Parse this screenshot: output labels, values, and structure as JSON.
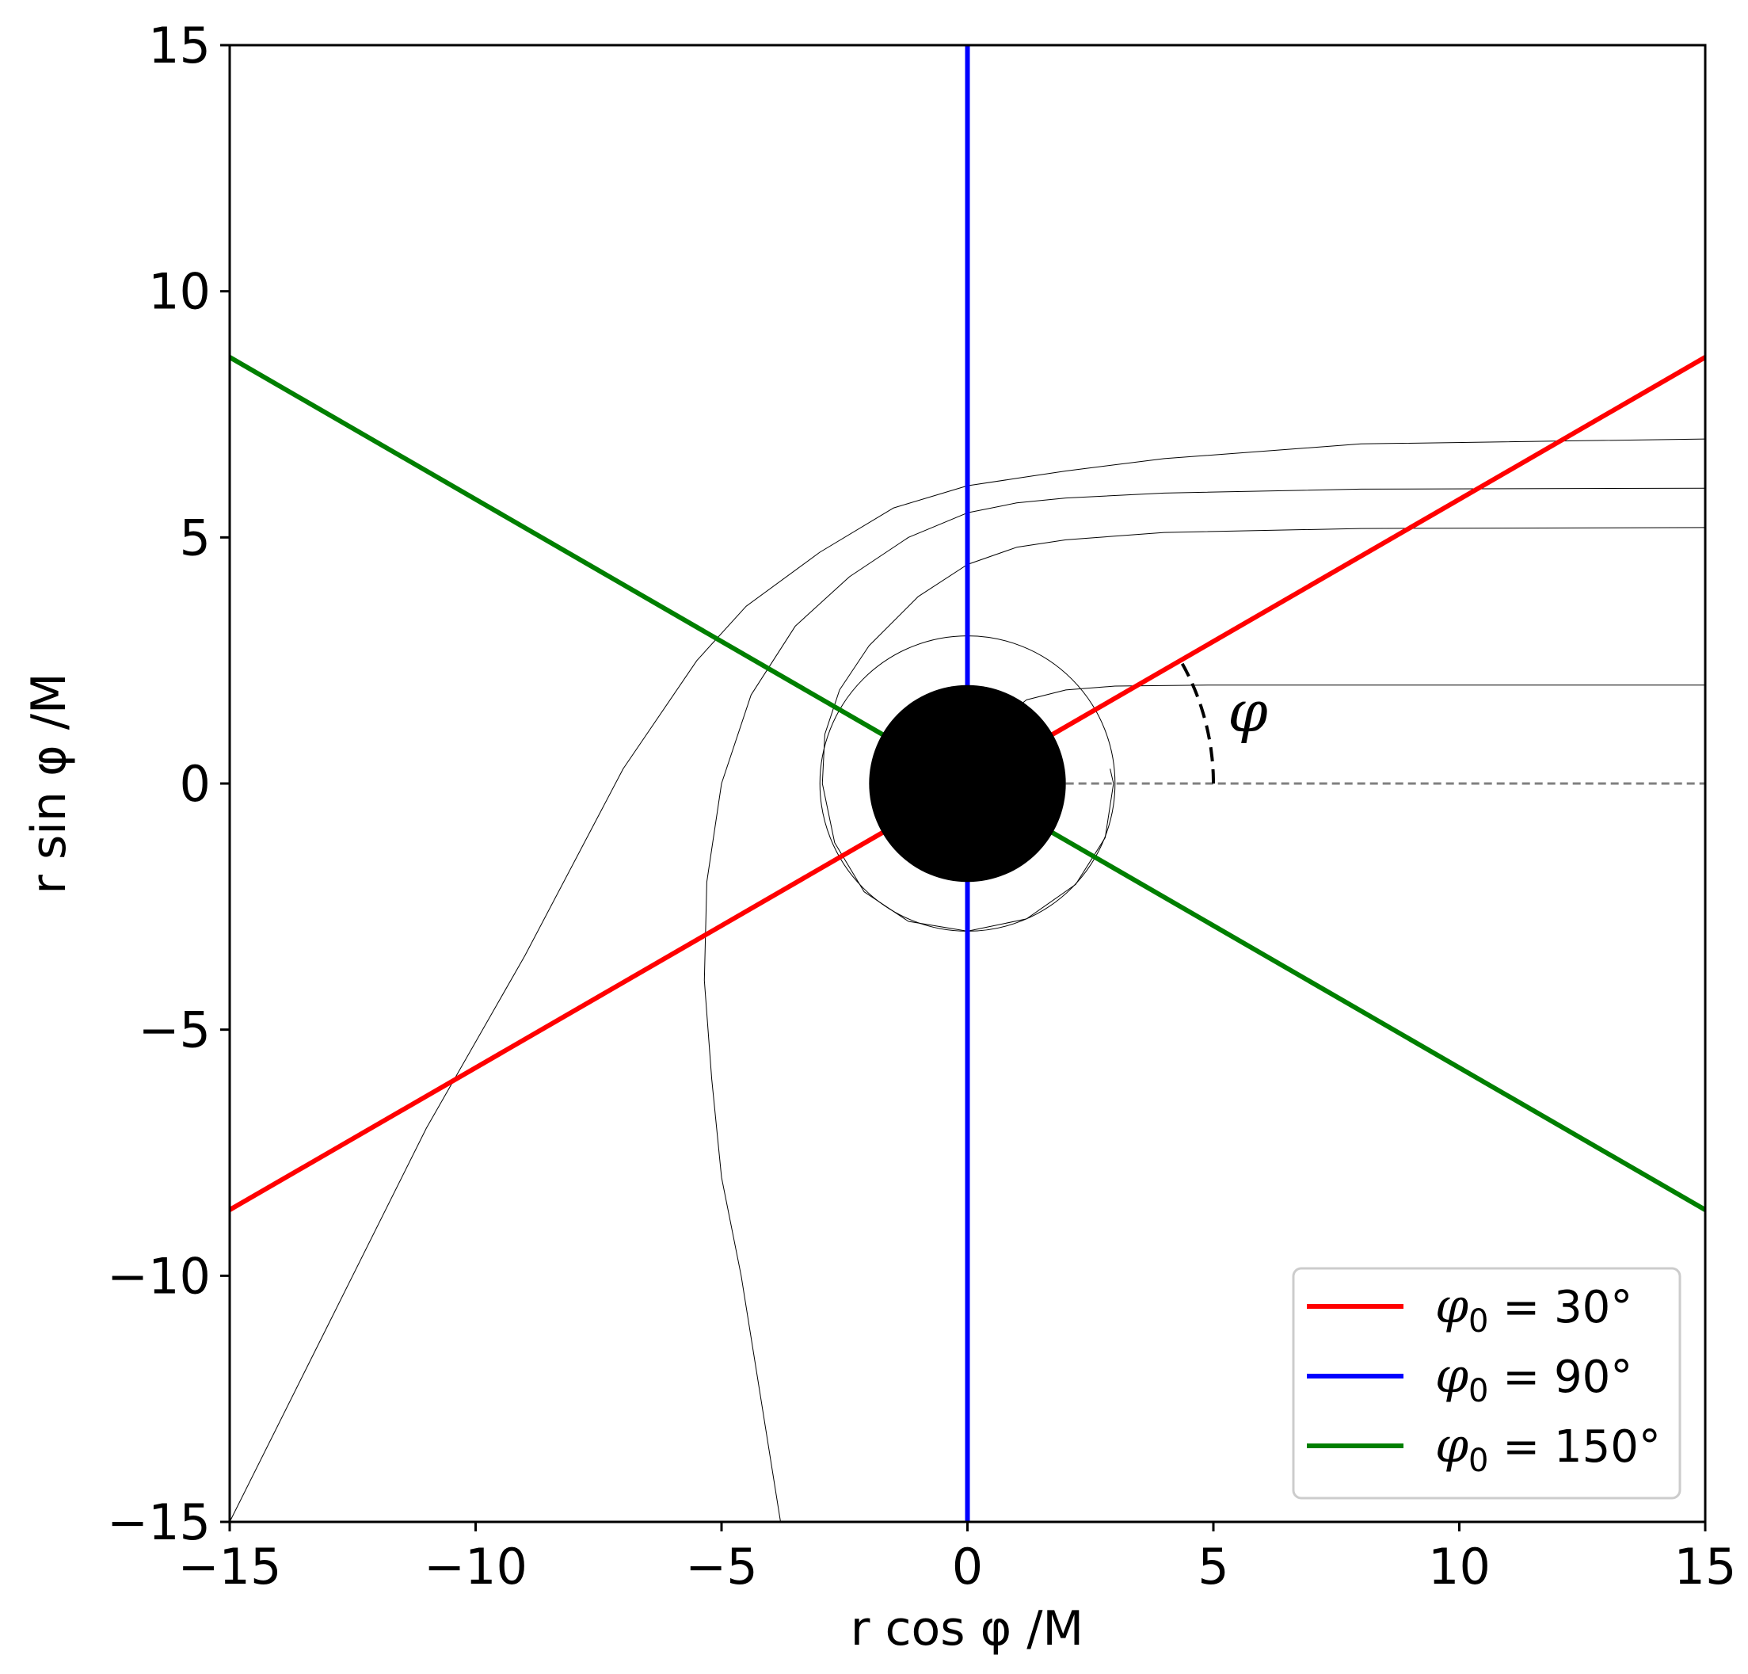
{
  "chart_data": {
    "type": "line",
    "xlabel": "r cos φ /M",
    "ylabel": "r sin φ /M",
    "xlim": [
      -15,
      15
    ],
    "ylim": [
      -15,
      15
    ],
    "grid": false,
    "legend_position": "bottom-right",
    "x_ticks": [
      {
        "value": -15,
        "label": "−15"
      },
      {
        "value": -10,
        "label": "−10"
      },
      {
        "value": -5,
        "label": "−5"
      },
      {
        "value": 0,
        "label": "0"
      },
      {
        "value": 5,
        "label": "5"
      },
      {
        "value": 10,
        "label": "10"
      },
      {
        "value": 15,
        "label": "15"
      }
    ],
    "y_ticks": [
      {
        "value": -15,
        "label": "−15"
      },
      {
        "value": -10,
        "label": "−10"
      },
      {
        "value": -5,
        "label": "−5"
      },
      {
        "value": 0,
        "label": "0"
      },
      {
        "value": 5,
        "label": "5"
      },
      {
        "value": 10,
        "label": "10"
      },
      {
        "value": 15,
        "label": "15"
      }
    ],
    "series": [
      {
        "name": "φ₀ = 30°",
        "label_main": "φ",
        "label_sub": "0",
        "label_rest": " = 30°",
        "color": "#ff0000",
        "x": [
          -15,
          15
        ],
        "y": [
          -8.66,
          8.66
        ]
      },
      {
        "name": "φ₀ = 90°",
        "label_main": "φ",
        "label_sub": "0",
        "label_rest": " = 90°",
        "color": "#0000ff",
        "x": [
          0,
          0
        ],
        "y": [
          -15,
          15
        ]
      },
      {
        "name": "φ₀ = 150°",
        "label_main": "φ",
        "label_sub": "0",
        "label_rest": " = 150°",
        "color": "#007f00",
        "x": [
          -15,
          15
        ],
        "y": [
          8.66,
          -8.66
        ]
      }
    ],
    "geodesics": [
      {
        "x": [
          15,
          8,
          4,
          2,
          1,
          0,
          -1.5,
          -3,
          -4.5,
          -5.5,
          -7,
          -9,
          -11,
          -13,
          -15
        ],
        "y": [
          7.0,
          6.9,
          6.6,
          6.35,
          6.2,
          6.05,
          5.6,
          4.7,
          3.6,
          2.5,
          0.3,
          -3.5,
          -7.0,
          -11.0,
          -15
        ]
      },
      {
        "x": [
          15,
          8,
          4,
          2,
          1,
          0,
          -1.2,
          -2.4,
          -3.5,
          -4.4,
          -5.0,
          -5.3,
          -5.35,
          -5.2,
          -5.0,
          -4.6,
          -4.2,
          -3.8
        ],
        "y": [
          6.0,
          5.98,
          5.9,
          5.8,
          5.7,
          5.5,
          5.0,
          4.2,
          3.2,
          1.8,
          0.0,
          -2.0,
          -4.0,
          -6.0,
          -8.0,
          -10.0,
          -12.5,
          -15
        ]
      },
      {
        "x": [
          15,
          8,
          4,
          2,
          1,
          0,
          -1.0,
          -2.0,
          -2.6,
          -2.9,
          -2.95,
          -2.7,
          -2.1,
          -1.2,
          0,
          1.2,
          2.2,
          2.8,
          2.97,
          2.9
        ],
        "y": [
          5.2,
          5.18,
          5.1,
          4.95,
          4.8,
          4.45,
          3.8,
          2.8,
          1.9,
          1.0,
          0.0,
          -1.2,
          -2.2,
          -2.8,
          -3.0,
          -2.75,
          -2.05,
          -1.1,
          0.0,
          0.3
        ]
      },
      {
        "x": [
          15,
          8,
          5,
          3,
          2,
          1.2,
          0.7
        ],
        "y": [
          2.0,
          2.0,
          2.0,
          1.98,
          1.9,
          1.7,
          1.3
        ]
      }
    ],
    "photon_circle": {
      "cx": 0,
      "cy": 0,
      "r": 3.0
    },
    "horizon": {
      "cx": 0,
      "cy": 0,
      "r": 2.0
    },
    "reference_line": {
      "x": [
        2,
        15
      ],
      "y": [
        0,
        0
      ]
    },
    "angle_arc": {
      "r": 5.0,
      "from_deg": 0,
      "to_deg": 30
    },
    "annotations": [
      {
        "text": "φ",
        "x": 5.7,
        "y": 1.45
      }
    ]
  }
}
